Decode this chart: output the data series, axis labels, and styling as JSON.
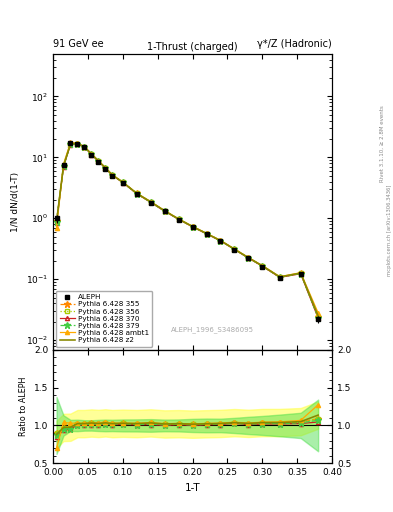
{
  "title_left": "91 GeV ee",
  "title_right": "γ*/Z (Hadronic)",
  "plot_title": "1-Thrust (charged)",
  "xlabel": "1-T",
  "ylabel_main": "1/N dN/d(1-T)",
  "ylabel_ratio": "Ratio to ALEPH",
  "watermark": "ALEPH_1996_S3486095",
  "right_label_top": "Rivet 3.1.10, ≥ 2.8M events",
  "right_label_bot": "mcplots.cern.ch [arXiv:1306.3436]",
  "x": [
    0.005,
    0.015,
    0.025,
    0.035,
    0.045,
    0.055,
    0.065,
    0.075,
    0.085,
    0.1,
    0.12,
    0.14,
    0.16,
    0.18,
    0.2,
    0.22,
    0.24,
    0.26,
    0.28,
    0.3,
    0.325,
    0.355,
    0.38
  ],
  "aleph_y": [
    1.0,
    7.5,
    17.0,
    16.5,
    14.5,
    11.0,
    8.5,
    6.5,
    5.0,
    3.8,
    2.5,
    1.8,
    1.3,
    0.95,
    0.72,
    0.55,
    0.42,
    0.3,
    0.22,
    0.16,
    0.105,
    0.12,
    0.022
  ],
  "aleph_yerr": [
    0.15,
    0.4,
    0.5,
    0.5,
    0.4,
    0.3,
    0.25,
    0.2,
    0.15,
    0.12,
    0.08,
    0.06,
    0.04,
    0.03,
    0.025,
    0.02,
    0.015,
    0.012,
    0.01,
    0.008,
    0.006,
    0.008,
    0.003
  ],
  "pythia355_y": [
    0.9,
    7.2,
    16.5,
    16.8,
    14.8,
    11.3,
    8.7,
    6.7,
    5.1,
    3.9,
    2.55,
    1.85,
    1.32,
    0.97,
    0.73,
    0.56,
    0.43,
    0.31,
    0.225,
    0.165,
    0.108,
    0.125,
    0.024
  ],
  "pythia356_y": [
    0.9,
    7.2,
    16.5,
    16.8,
    14.8,
    11.3,
    8.7,
    6.7,
    5.1,
    3.9,
    2.55,
    1.85,
    1.32,
    0.97,
    0.73,
    0.56,
    0.43,
    0.31,
    0.225,
    0.165,
    0.108,
    0.125,
    0.024
  ],
  "pythia370_y": [
    0.85,
    7.0,
    16.2,
    16.6,
    14.6,
    11.1,
    8.6,
    6.6,
    5.05,
    3.85,
    2.52,
    1.82,
    1.3,
    0.96,
    0.72,
    0.555,
    0.425,
    0.308,
    0.222,
    0.163,
    0.107,
    0.123,
    0.023
  ],
  "pythia379_y": [
    0.88,
    7.1,
    16.3,
    16.7,
    14.7,
    11.2,
    8.65,
    6.65,
    5.08,
    3.88,
    2.53,
    1.83,
    1.31,
    0.965,
    0.725,
    0.558,
    0.427,
    0.309,
    0.223,
    0.164,
    0.1075,
    0.124,
    0.0235
  ],
  "pythia_ambt1_y": [
    0.7,
    7.8,
    17.5,
    17.0,
    14.9,
    11.4,
    8.8,
    6.8,
    5.15,
    3.92,
    2.57,
    1.87,
    1.33,
    0.975,
    0.735,
    0.565,
    0.433,
    0.313,
    0.227,
    0.167,
    0.11,
    0.128,
    0.028
  ],
  "pythia_z2_y": [
    0.88,
    7.3,
    16.6,
    16.9,
    14.85,
    11.35,
    8.72,
    6.72,
    5.12,
    3.91,
    2.56,
    1.86,
    1.325,
    0.972,
    0.732,
    0.562,
    0.431,
    0.311,
    0.226,
    0.166,
    0.109,
    0.126,
    0.025
  ],
  "colors": {
    "aleph": "#000000",
    "p355": "#ff8800",
    "p356": "#aacc00",
    "p370": "#cc2222",
    "p379": "#44cc44",
    "ambt1": "#ffaa00",
    "z2": "#888800"
  },
  "xlim": [
    0.0,
    0.4
  ],
  "ylim_main": [
    0.007,
    500
  ],
  "ylim_ratio": [
    0.5,
    2.0
  ],
  "ratio_yticks": [
    0.5,
    1.0,
    1.5,
    2.0
  ]
}
